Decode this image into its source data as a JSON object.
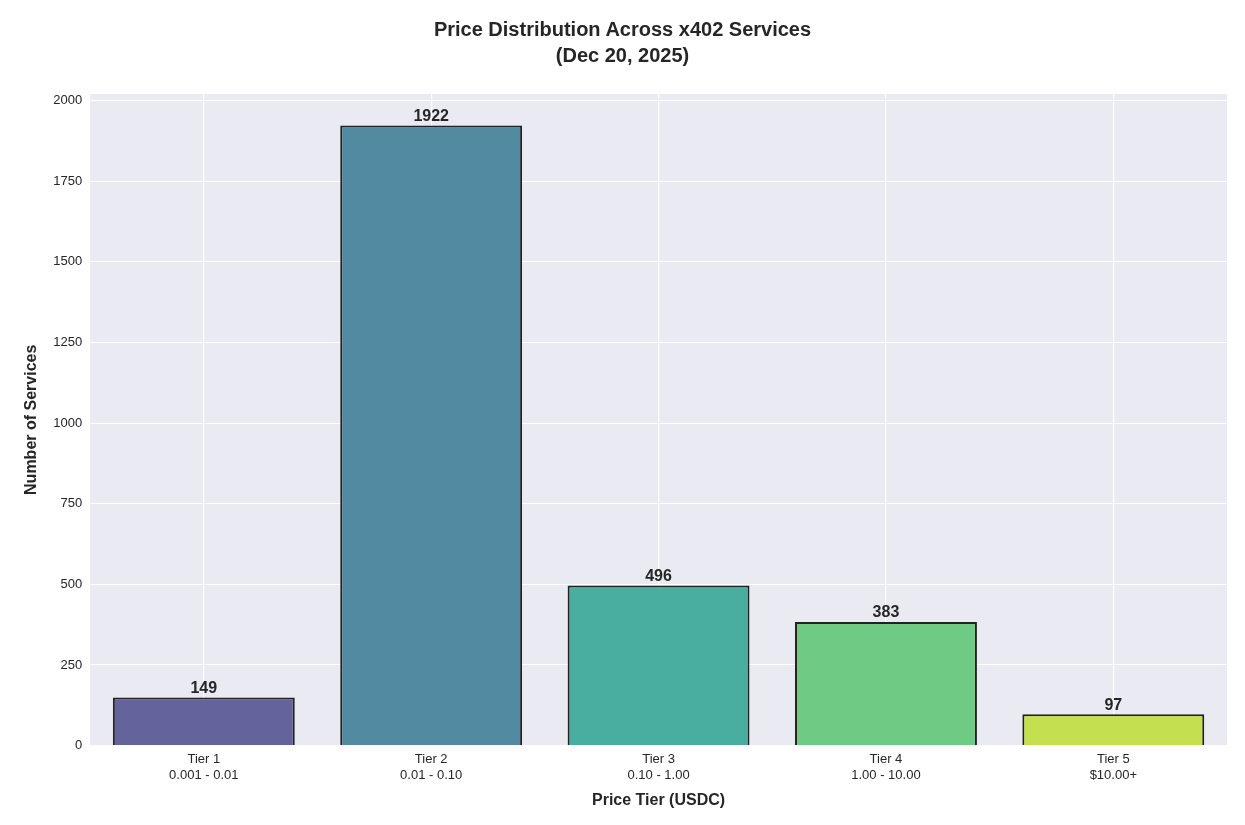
{
  "chart_data": {
    "type": "bar",
    "title": "Price Distribution Across x402 Services",
    "subtitle": "(Dec 20, 2025)",
    "xlabel": "Price Tier (USDC)",
    "ylabel": "Number of Services",
    "categories": [
      "Tier 1\n0.001 - 0.01",
      "Tier 2\n0.01 - 0.10",
      "Tier 3\n0.10 - 1.00",
      "Tier 4\n1.00 - 10.00",
      "Tier 5\n$10.00+"
    ],
    "values": [
      149,
      1922,
      496,
      383,
      97
    ],
    "colors": [
      "#65639b",
      "#528aa2",
      "#48ae9f",
      "#6fcb83",
      "#c5e04f"
    ],
    "ylim": [
      0,
      2020
    ],
    "yticks": [
      0,
      250,
      500,
      750,
      1000,
      1250,
      1500,
      1750,
      2000
    ],
    "grid": true,
    "data_labels": true,
    "legend": false
  }
}
